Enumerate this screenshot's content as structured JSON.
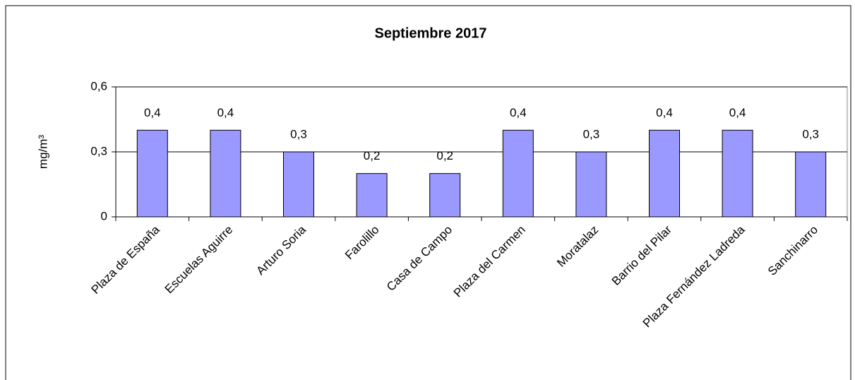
{
  "chart_data": {
    "type": "bar",
    "title": "Septiembre 2017",
    "y_label": "mg/m³",
    "categories": [
      "Plaza de España",
      "Escuelas Aguirre",
      "Arturo Soria",
      "Farolillo",
      "Casa de Campo",
      "Plaza del Carmen",
      "Moratalaz",
      "Barrio del Pilar",
      "Plaza Fernández Ladreda",
      "Sanchinarro"
    ],
    "values": [
      0.4,
      0.4,
      0.3,
      0.2,
      0.2,
      0.4,
      0.3,
      0.4,
      0.4,
      0.3
    ],
    "value_labels": [
      "0,4",
      "0,4",
      "0,3",
      "0,2",
      "0,2",
      "0,4",
      "0,3",
      "0,4",
      "0,4",
      "0,3"
    ],
    "color": "#9999ff",
    "ylim": [
      0,
      0.6
    ],
    "yticks": [
      0,
      {
        "value": 0.3,
        "label": "0,3"
      },
      {
        "value": 0.6,
        "label": "0,6"
      }
    ],
    "grid": true
  }
}
